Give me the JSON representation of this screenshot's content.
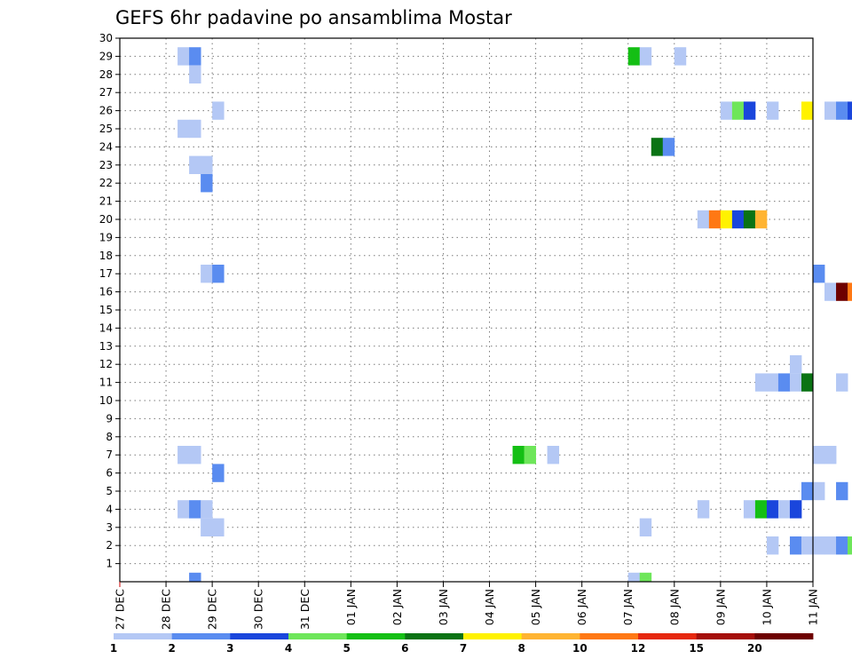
{
  "chart_data": {
    "type": "heatmap",
    "title": "GEFS 6hr padavine po ansamblima Mostar",
    "xlabel": "",
    "ylabel": "",
    "x_ticks": [
      "27 DEC",
      "28 DEC",
      "29 DEC",
      "30 DEC",
      "31 DEC",
      "01 JAN",
      "02 JAN",
      "03 JAN",
      "04 JAN",
      "05 JAN",
      "06 JAN",
      "07 JAN",
      "08 JAN",
      "09 JAN",
      "10 JAN",
      "11 JAN"
    ],
    "x_step_hours": 6,
    "y_ticks": [
      1,
      2,
      3,
      4,
      5,
      6,
      7,
      8,
      9,
      10,
      11,
      12,
      13,
      14,
      15,
      16,
      17,
      18,
      19,
      20,
      21,
      22,
      23,
      24,
      25,
      26,
      27,
      28,
      29,
      30
    ],
    "ylim": [
      0,
      30
    ],
    "grid": true,
    "colorbar": {
      "placement": "bottom",
      "labels": [
        "1",
        "2",
        "3",
        "4",
        "5",
        "6",
        "7",
        "8",
        "10",
        "12",
        "15",
        "20"
      ],
      "colors": [
        "#b4c8f5",
        "#5a8cf0",
        "#1a46dc",
        "#6ee65a",
        "#14bf14",
        "#0a7314",
        "#fff200",
        "#ffb432",
        "#ff7814",
        "#e6280f",
        "#a50f0a",
        "#6e0000"
      ]
    },
    "cells": [
      {
        "member": 29,
        "step": 5,
        "value": 1
      },
      {
        "member": 29,
        "step": 6,
        "value": 2
      },
      {
        "member": 28,
        "step": 6,
        "value": 1
      },
      {
        "member": 26,
        "step": 8,
        "value": 1
      },
      {
        "member": 25,
        "step": 5,
        "value": 1
      },
      {
        "member": 25,
        "step": 6,
        "value": 1
      },
      {
        "member": 23,
        "step": 6,
        "value": 1
      },
      {
        "member": 23,
        "step": 7,
        "value": 1
      },
      {
        "member": 22,
        "step": 7,
        "value": 2
      },
      {
        "member": 17,
        "step": 7,
        "value": 1
      },
      {
        "member": 17,
        "step": 8,
        "value": 2
      },
      {
        "member": 7,
        "step": 5,
        "value": 1
      },
      {
        "member": 7,
        "step": 6,
        "value": 1
      },
      {
        "member": 6,
        "step": 8,
        "value": 2
      },
      {
        "member": 4,
        "step": 5,
        "value": 1
      },
      {
        "member": 4,
        "step": 6,
        "value": 2
      },
      {
        "member": 4,
        "step": 7,
        "value": 1
      },
      {
        "member": 3,
        "step": 7,
        "value": 1
      },
      {
        "member": 3,
        "step": 8,
        "value": 1
      },
      {
        "member": 0,
        "step": 6,
        "value": 2
      },
      {
        "member": 7,
        "step": 34,
        "value": 5
      },
      {
        "member": 7,
        "step": 35,
        "value": 4
      },
      {
        "member": 7,
        "step": 37,
        "value": 1
      },
      {
        "member": 29,
        "step": 44,
        "value": 5
      },
      {
        "member": 29,
        "step": 45,
        "value": 1
      },
      {
        "member": 29,
        "step": 48,
        "value": 1
      },
      {
        "member": 24,
        "step": 46,
        "value": 6
      },
      {
        "member": 24,
        "step": 47,
        "value": 2
      },
      {
        "member": 3,
        "step": 45,
        "value": 1
      },
      {
        "member": 0,
        "step": 44,
        "value": 1
      },
      {
        "member": 0,
        "step": 45,
        "value": 4
      },
      {
        "member": 26,
        "step": 52,
        "value": 1
      },
      {
        "member": 26,
        "step": 53,
        "value": 4
      },
      {
        "member": 26,
        "step": 54,
        "value": 3
      },
      {
        "member": 26,
        "step": 56,
        "value": 1
      },
      {
        "member": 26,
        "step": 59,
        "value": 7
      },
      {
        "member": 26,
        "step": 61,
        "value": 1
      },
      {
        "member": 26,
        "step": 62,
        "value": 2
      },
      {
        "member": 26,
        "step": 63,
        "value": 3
      },
      {
        "member": 26,
        "step": 64,
        "value": 12
      },
      {
        "member": 26,
        "step": 65,
        "value": 2
      },
      {
        "member": 25,
        "step": 65,
        "value": 1
      },
      {
        "member": 22,
        "step": 64,
        "value": 2
      },
      {
        "member": 20,
        "step": 50,
        "value": 1
      },
      {
        "member": 20,
        "step": 51,
        "value": 10
      },
      {
        "member": 20,
        "step": 52,
        "value": 7
      },
      {
        "member": 20,
        "step": 53,
        "value": 3
      },
      {
        "member": 20,
        "step": 54,
        "value": 6
      },
      {
        "member": 20,
        "step": 55,
        "value": 8
      },
      {
        "member": 17,
        "step": 60,
        "value": 2
      },
      {
        "member": 16,
        "step": 61,
        "value": 1
      },
      {
        "member": 16,
        "step": 62,
        "value": 20
      },
      {
        "member": 16,
        "step": 63,
        "value": 10
      },
      {
        "member": 16,
        "step": 65,
        "value": 1
      },
      {
        "member": 12,
        "step": 58,
        "value": 1
      },
      {
        "member": 11,
        "step": 55,
        "value": 1
      },
      {
        "member": 11,
        "step": 56,
        "value": 1
      },
      {
        "member": 11,
        "step": 57,
        "value": 2
      },
      {
        "member": 11,
        "step": 58,
        "value": 1
      },
      {
        "member": 11,
        "step": 59,
        "value": 6
      },
      {
        "member": 11,
        "step": 62,
        "value": 1
      },
      {
        "member": 7,
        "step": 60,
        "value": 1
      },
      {
        "member": 7,
        "step": 61,
        "value": 1
      },
      {
        "member": 5,
        "step": 59,
        "value": 2
      },
      {
        "member": 5,
        "step": 60,
        "value": 1
      },
      {
        "member": 5,
        "step": 62,
        "value": 2
      },
      {
        "member": 4,
        "step": 50,
        "value": 1
      },
      {
        "member": 4,
        "step": 54,
        "value": 1
      },
      {
        "member": 4,
        "step": 55,
        "value": 5
      },
      {
        "member": 4,
        "step": 56,
        "value": 3
      },
      {
        "member": 4,
        "step": 57,
        "value": 1
      },
      {
        "member": 4,
        "step": 58,
        "value": 3
      },
      {
        "member": 2,
        "step": 56,
        "value": 1
      },
      {
        "member": 2,
        "step": 58,
        "value": 2
      },
      {
        "member": 2,
        "step": 59,
        "value": 1
      },
      {
        "member": 2,
        "step": 60,
        "value": 1
      },
      {
        "member": 2,
        "step": 61,
        "value": 1
      },
      {
        "member": 2,
        "step": 62,
        "value": 2
      },
      {
        "member": 2,
        "step": 63,
        "value": 4
      },
      {
        "member": 2,
        "step": 64,
        "value": 2
      },
      {
        "member": 2,
        "step": 65,
        "value": 6
      },
      {
        "member": 2,
        "step": 66,
        "value": 8
      },
      {
        "member": 2,
        "step": 67,
        "value": 12
      },
      {
        "member": 2,
        "step": 68,
        "value": 8
      },
      {
        "member": 2,
        "step": 69,
        "value": 8
      }
    ]
  }
}
